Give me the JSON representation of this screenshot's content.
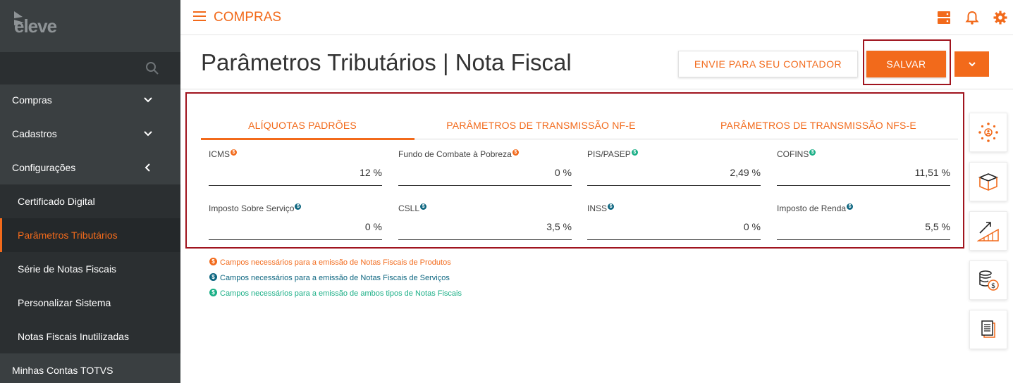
{
  "sidebar": {
    "logo_text": "eleve",
    "items": [
      {
        "label": "Compras"
      },
      {
        "label": "Cadastros"
      },
      {
        "label": "Configurações"
      }
    ],
    "subitems": [
      {
        "label": "Certificado Digital"
      },
      {
        "label": "Parâmetros Tributários"
      },
      {
        "label": "Série de Notas Fiscais"
      },
      {
        "label": "Personalizar Sistema"
      },
      {
        "label": "Notas Fiscais Inutilizadas"
      }
    ],
    "bottom_item": {
      "label": "Minhas Contas TOTVS"
    }
  },
  "topbar": {
    "module_title": "COMPRAS"
  },
  "header": {
    "title": "Parâmetros Tributários | Nota Fiscal",
    "contador_button": "ENVIE PARA SEU CONTADOR",
    "save_button": "SALVAR"
  },
  "tabs": [
    {
      "label": "ALÍQUOTAS PADRÕES",
      "active": true
    },
    {
      "label": "PARÂMETROS DE TRANSMISSÃO NF-E",
      "active": false
    },
    {
      "label": "PARÂMETROS DE TRANSMISSÃO NFS-E",
      "active": false
    }
  ],
  "fields": [
    {
      "label": "ICMS",
      "value": "12 %",
      "badge": "orange"
    },
    {
      "label": "Fundo de Combate à Pobreza",
      "value": "0 %",
      "badge": "orange"
    },
    {
      "label": "PIS/PASEP",
      "value": "2,49 %",
      "badge": "green"
    },
    {
      "label": "COFINS",
      "value": "11,51 %",
      "badge": "green"
    },
    {
      "label": "Imposto Sobre Serviço",
      "value": "0 %",
      "badge": "blue"
    },
    {
      "label": "CSLL",
      "value": "3,5 %",
      "badge": "blue"
    },
    {
      "label": "INSS",
      "value": "0 %",
      "badge": "blue"
    },
    {
      "label": "Imposto de Renda",
      "value": "5,5 %",
      "badge": "blue"
    }
  ],
  "legend": [
    {
      "text": "Campos necessários para a emissão de Notas Fiscais de Produtos",
      "color": "#f26a1b"
    },
    {
      "text": "Campos necessários para a emissão de Notas Fiscais de Serviços",
      "color": "#0d6680"
    },
    {
      "text": "Campos necessários para a emissão de ambos tipos de Notas Fiscais",
      "color": "#1aaf86"
    }
  ],
  "colors": {
    "accent": "#f26a1b",
    "sidebar_bg": "#3a3f41",
    "highlight_frame": "#a0141e"
  },
  "icons": {
    "top": [
      "server-icon",
      "bell-icon",
      "gear-icon"
    ],
    "rail": [
      "network-person-icon",
      "box-icon",
      "growth-chart-icon",
      "coins-dollar-icon",
      "documents-icon"
    ]
  }
}
